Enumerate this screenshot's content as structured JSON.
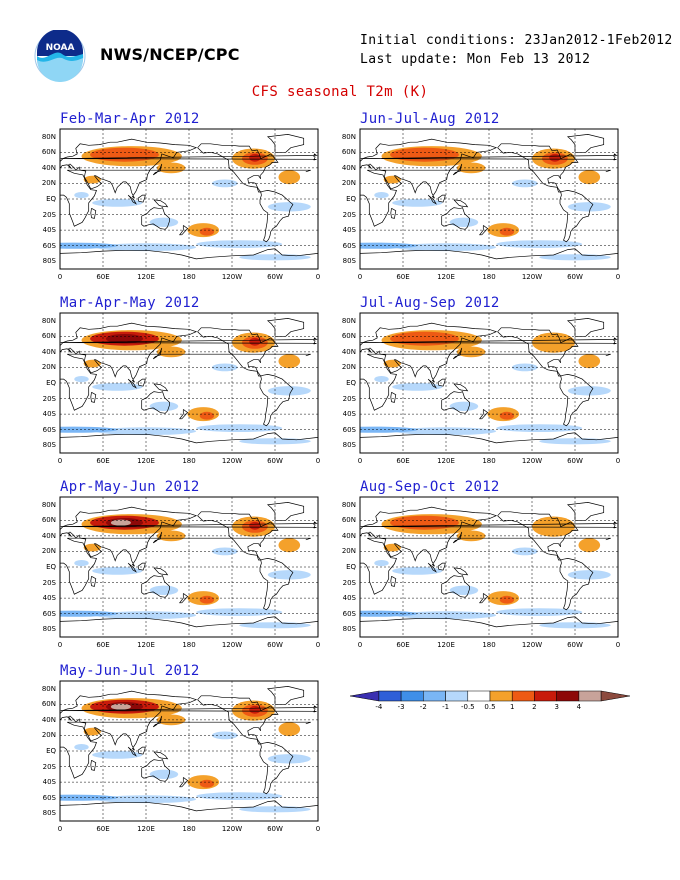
{
  "header": {
    "org": "NWS/NCEP/CPC",
    "initial_conditions": "Initial conditions: 23Jan2012-1Feb2012",
    "last_update": "Last update: Mon Feb 13 2012",
    "title": "CFS seasonal T2m (K)"
  },
  "logo": {
    "icon": "noaa-logo-icon",
    "text": "NOAA"
  },
  "axes": {
    "lat_labels": [
      "80N",
      "60N",
      "40N",
      "20N",
      "EQ",
      "20S",
      "40S",
      "60S",
      "80S"
    ],
    "lon_labels": [
      "0",
      "60E",
      "120E",
      "180",
      "120W",
      "60W",
      "0"
    ]
  },
  "panels": [
    {
      "season": "Feb-Mar-Apr 2012",
      "warm": 0.7
    },
    {
      "season": "Mar-Apr-May 2012",
      "warm": 0.85
    },
    {
      "season": "Apr-May-Jun 2012",
      "warm": 1.0
    },
    {
      "season": "May-Jun-Jul 2012",
      "warm": 1.05
    },
    {
      "season": "Jun-Jul-Aug 2012",
      "warm": 0.65
    },
    {
      "season": "Jul-Aug-Sep 2012",
      "warm": 0.4
    },
    {
      "season": "Aug-Sep-Oct 2012",
      "warm": 0.35
    }
  ],
  "colorbar": {
    "labels": [
      "-4",
      "-3",
      "-2",
      "-1",
      "-0.5",
      "0.5",
      "1",
      "2",
      "3",
      "4"
    ],
    "colors": [
      "#3a2fb0",
      "#2f5fd8",
      "#3f8fe8",
      "#7ab6f5",
      "#b6d8fb",
      "#ffffff",
      "#f4a12b",
      "#ee5a14",
      "#c81b0b",
      "#8d0808",
      "#c8a39a",
      "#8c4a3e"
    ]
  }
}
